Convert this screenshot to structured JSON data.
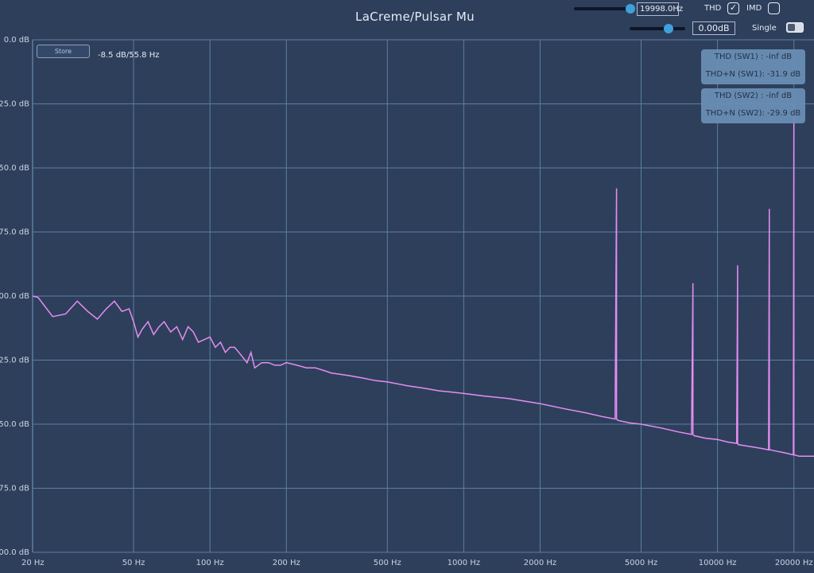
{
  "window": {
    "title": "LaCreme/Pulsar Mu"
  },
  "controls": {
    "frequency_value": "19998.0Hz",
    "frequency_slider_fraction": 0.98,
    "gain_value": "0.00dB",
    "gain_slider_fraction": 0.7,
    "thd_label": "THD",
    "thd_checked": true,
    "imd_label": "IMD",
    "imd_checked": false,
    "single_label": "Single",
    "single_toggle_on": false,
    "store_label": "Store",
    "cursor_readout": "-8.5 dB/55.8 Hz"
  },
  "thd_panels": [
    {
      "thd": "THD (SW1) : -inf dB",
      "thdn": "THD+N (SW1): -31.9 dB"
    },
    {
      "thd": "THD (SW2) : -inf dB",
      "thdn": "THD+N (SW2): -29.9 dB"
    }
  ],
  "colors": {
    "background": "#2e3f5c",
    "grid": "#5b7fa0",
    "trace": "#e48ef0",
    "accent": "#3fa1dc",
    "panel": "#6a8fb4"
  },
  "chart_data": {
    "type": "line",
    "x_scale": "log",
    "xlim": [
      20,
      24000
    ],
    "ylim": [
      -200,
      0
    ],
    "x_ticks": [
      20,
      50,
      100,
      200,
      500,
      1000,
      2000,
      5000,
      10000,
      20000
    ],
    "x_tick_labels": [
      "20 Hz",
      "50 Hz",
      "100 Hz",
      "200 Hz",
      "500 Hz",
      "1000 Hz",
      "2000 Hz",
      "5000 Hz",
      "10000 Hz",
      "20000 Hz"
    ],
    "y_ticks": [
      0,
      -25,
      -50,
      -75,
      -100,
      -125,
      -150,
      -175,
      -200
    ],
    "y_tick_labels": [
      "0.0 dB",
      "-25.0 dB",
      "-50.0 dB",
      "-75.0 dB",
      "-100.0 dB",
      "-125.0 dB",
      "-150.0 dB",
      "-175.0 dB",
      "-200.0 dB"
    ],
    "grid": true,
    "series": [
      {
        "x": [
          20,
          21,
          24,
          27,
          30,
          33,
          36,
          39,
          42,
          45,
          48,
          50,
          52,
          54,
          57,
          60,
          63,
          66,
          70,
          74,
          78,
          82,
          86,
          90,
          95,
          100,
          105,
          110,
          115,
          120,
          125,
          130,
          135,
          140,
          145,
          150,
          160,
          170,
          180,
          190,
          200,
          220,
          240,
          260,
          280,
          300,
          350,
          400,
          450,
          500,
          600,
          700,
          800,
          900,
          1000,
          1200,
          1500,
          2000,
          2500,
          3000,
          3500,
          3950,
          4000,
          4000,
          4050,
          4500,
          5000,
          6000,
          7000,
          7900,
          8000,
          8000,
          8100,
          9000,
          10000,
          11000,
          11900,
          12000,
          12000,
          12100,
          13000,
          14000,
          15000,
          15900,
          16000,
          16000,
          16100,
          17000,
          18000,
          19000,
          19900,
          20000,
          20000,
          20100,
          21000,
          22000,
          23000,
          24000
        ],
        "y": [
          -100,
          -100.5,
          -108,
          -107,
          -102,
          -106,
          -109,
          -105,
          -102,
          -106,
          -105,
          -110,
          -116,
          -113,
          -110,
          -115,
          -112,
          -110,
          -114,
          -112,
          -117,
          -112,
          -114,
          -118,
          -117,
          -116,
          -120,
          -118,
          -122,
          -120,
          -120,
          -122,
          -124,
          -126,
          -122,
          -128,
          -126,
          -126,
          -127,
          -127,
          -126,
          -127,
          -128,
          -128,
          -129,
          -130,
          -131,
          -132,
          -133,
          -133.5,
          -135,
          -136,
          -137,
          -137.5,
          -138,
          -139,
          -140,
          -142,
          -144,
          -145.5,
          -147,
          -148,
          -58,
          -148,
          -148.5,
          -149.5,
          -150,
          -151.5,
          -153,
          -154,
          -95,
          -154,
          -154.5,
          -155.5,
          -156,
          -157,
          -157.5,
          -88,
          -157.5,
          -158,
          -158.5,
          -159,
          -159.5,
          -160,
          -66,
          -160,
          -160,
          -160.5,
          -161,
          -161.5,
          -162,
          -25,
          -162,
          -162,
          -162.5,
          -162.5,
          -162.5,
          -162.5
        ]
      }
    ]
  }
}
